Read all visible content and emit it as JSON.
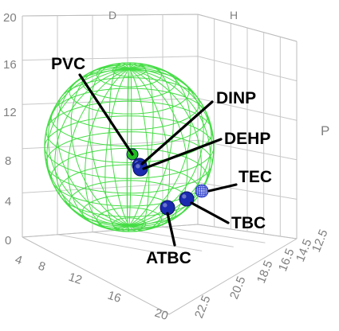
{
  "chart_data": {
    "type": "scatter",
    "subtype": "3d-hansen-solubility-sphere",
    "title": "",
    "axes": {
      "D": {
        "label": "D",
        "ticks": [
          "4",
          "8",
          "12",
          "16",
          "20"
        ],
        "range": [
          4,
          20
        ]
      },
      "H": {
        "label": "H",
        "ticks": [
          "0",
          "4",
          "8",
          "12",
          "16",
          "20"
        ],
        "range": [
          0,
          20
        ]
      },
      "P": {
        "label": "P",
        "ticks": [
          "22.5",
          "20.5",
          "18.5",
          "16.5",
          "14.5",
          "12.5"
        ],
        "range": [
          12.5,
          22.5
        ]
      }
    },
    "sphere": {
      "label": "PVC",
      "color": "#44dd44",
      "style": "wireframe"
    },
    "points": [
      {
        "label": "PVC",
        "color": "#22bb22"
      },
      {
        "label": "DINP",
        "color": "#1a2bb0"
      },
      {
        "label": "DEHP",
        "color": "#1a2bb0"
      },
      {
        "label": "TEC",
        "color": "#3344cc",
        "style": "wireframe"
      },
      {
        "label": "TBC",
        "color": "#1a2bb0"
      },
      {
        "label": "ATBC",
        "color": "#1a2bb0"
      }
    ],
    "grid": true,
    "legend": "none"
  }
}
